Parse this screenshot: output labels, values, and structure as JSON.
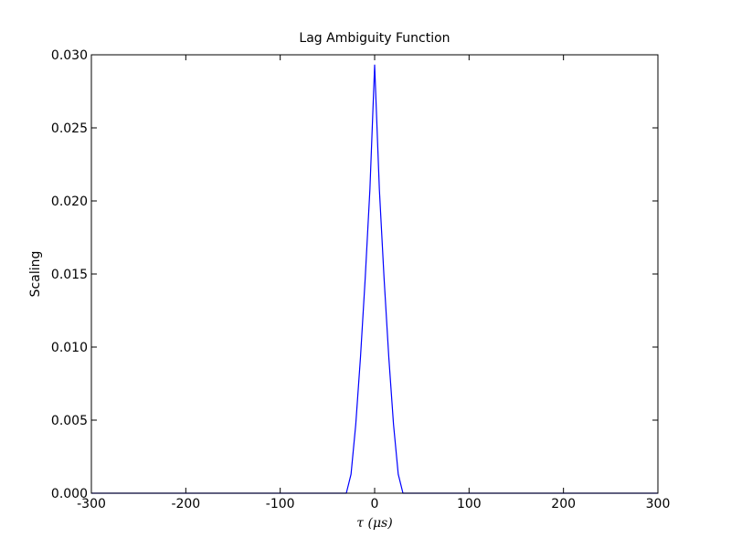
{
  "chart_data": {
    "type": "line",
    "title": "Lag Ambiguity Function",
    "xlabel": "τ (μs)",
    "ylabel": "Scaling",
    "xlim": [
      -300,
      300
    ],
    "ylim": [
      0,
      0.03
    ],
    "x_ticks": [
      -300,
      -200,
      -100,
      0,
      100,
      200,
      300
    ],
    "x_tick_labels": [
      "-300",
      "-200",
      "-100",
      "0",
      "100",
      "200",
      "300"
    ],
    "y_ticks": [
      0,
      0.005,
      0.01,
      0.015,
      0.02,
      0.025,
      0.03
    ],
    "y_tick_labels": [
      "0.000",
      "0.005",
      "0.010",
      "0.015",
      "0.020",
      "0.025",
      "0.030"
    ],
    "grid": false,
    "legend": "none",
    "series": [
      {
        "color": "#0000ff",
        "x": [
          -300,
          -30,
          -25,
          -20,
          -15,
          -10,
          -5,
          0,
          5,
          10,
          15,
          20,
          25,
          30,
          300
        ],
        "y": [
          0,
          0,
          0.0013,
          0.0047,
          0.0093,
          0.0147,
          0.0208,
          0.0293,
          0.0208,
          0.0147,
          0.0093,
          0.0047,
          0.0013,
          0,
          0
        ]
      }
    ]
  }
}
